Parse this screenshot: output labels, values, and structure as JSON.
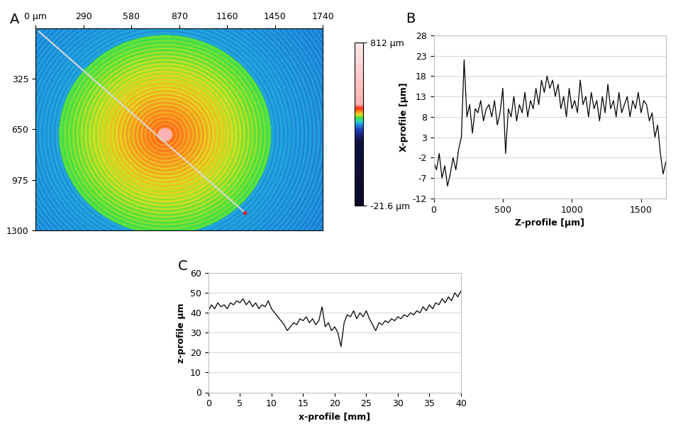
{
  "chart_data": [
    {
      "type": "image",
      "title": "A",
      "xlim": [
        0,
        1740
      ],
      "ylim": [
        1300,
        0
      ],
      "xticks": [
        {
          "value": 0,
          "label": "0 µm"
        },
        290,
        580,
        870,
        1160,
        1450,
        1740
      ],
      "yticks": [
        325,
        650,
        975,
        1300
      ],
      "profile_x": [
        20,
        1267
      ],
      "profile_y": [
        20,
        1186
      ],
      "colorbar_range": [
        -21.6,
        812
      ],
      "colorbar_ticks": [
        {
          "value": 812,
          "label": "812 µm"
        },
        {
          "value": -21.6,
          "label": "-21.6 µm"
        }
      ]
    },
    {
      "type": "line",
      "title": "B",
      "x_label": "Z-profile [µm]",
      "y_label": "X-profile [µm]",
      "xlim": [
        0,
        1680
      ],
      "ylim": [
        -12,
        28
      ],
      "xticks": [
        0,
        500,
        1000,
        1500
      ],
      "yticks": [
        -12,
        -7,
        -2,
        3,
        8,
        13,
        18,
        23,
        28
      ],
      "grid": "y",
      "color": "#000000",
      "x": [
        0,
        20,
        40,
        60,
        80,
        100,
        120,
        140,
        160,
        180,
        200,
        220,
        240,
        260,
        280,
        300,
        320,
        340,
        360,
        380,
        400,
        420,
        440,
        460,
        480,
        500,
        520,
        540,
        560,
        580,
        600,
        620,
        640,
        660,
        680,
        700,
        720,
        740,
        760,
        780,
        800,
        820,
        840,
        860,
        880,
        900,
        920,
        940,
        960,
        980,
        1000,
        1020,
        1040,
        1060,
        1080,
        1100,
        1120,
        1140,
        1160,
        1180,
        1200,
        1220,
        1240,
        1260,
        1280,
        1300,
        1320,
        1340,
        1360,
        1380,
        1400,
        1420,
        1440,
        1460,
        1480,
        1500,
        1520,
        1540,
        1560,
        1580,
        1600,
        1620,
        1640,
        1660,
        1680
      ],
      "values": [
        -3,
        -5,
        -1,
        -7,
        -4,
        -9,
        -6,
        -2,
        -5,
        0,
        3,
        22,
        8,
        11,
        4,
        10,
        9,
        12,
        7,
        10,
        11,
        8,
        12,
        6,
        9,
        15,
        -1,
        10,
        8,
        13,
        7,
        11,
        9,
        14,
        8,
        12,
        10,
        15,
        11,
        17,
        14,
        18,
        15,
        17,
        13,
        16,
        10,
        13,
        8,
        15,
        10,
        12,
        9,
        17,
        11,
        13,
        8,
        14,
        10,
        12,
        7,
        13,
        9,
        16,
        10,
        12,
        8,
        14,
        9,
        11,
        13,
        8,
        12,
        10,
        14,
        9,
        12,
        11,
        7,
        9,
        3,
        6,
        -1,
        -6,
        -3
      ]
    },
    {
      "type": "line",
      "title": "C",
      "x_label": "x-profile [mm]",
      "y_label": "z-profile µm",
      "xlim": [
        0,
        40
      ],
      "ylim": [
        0,
        60
      ],
      "xticks": [
        0,
        5,
        10,
        15,
        20,
        25,
        30,
        35,
        40
      ],
      "yticks": [
        0,
        10,
        20,
        30,
        40,
        50,
        60
      ],
      "grid": "y",
      "color": "#000000",
      "x": [
        0,
        0.5,
        1,
        1.5,
        2,
        2.5,
        3,
        3.5,
        4,
        4.5,
        5,
        5.5,
        6,
        6.5,
        7,
        7.5,
        8,
        8.5,
        9,
        9.5,
        10,
        10.5,
        11,
        11.5,
        12,
        12.5,
        13,
        13.5,
        14,
        14.5,
        15,
        15.5,
        16,
        16.5,
        17,
        17.5,
        18,
        18.5,
        19,
        19.5,
        20,
        20.5,
        21,
        21.5,
        22,
        22.5,
        23,
        23.5,
        24,
        24.5,
        25,
        25.5,
        26,
        26.5,
        27,
        27.5,
        28,
        28.5,
        29,
        29.5,
        30,
        30.5,
        31,
        31.5,
        32,
        32.5,
        33,
        33.5,
        34,
        34.5,
        35,
        35.5,
        36,
        36.5,
        37,
        37.5,
        38,
        38.5,
        39,
        39.5,
        40
      ],
      "values": [
        41,
        44,
        42,
        45,
        43,
        44,
        42,
        45,
        44,
        46,
        45,
        47,
        44,
        46,
        43,
        45,
        42,
        44,
        43,
        46,
        42,
        40,
        38,
        36,
        34,
        31,
        33,
        35,
        34,
        37,
        36,
        38,
        35,
        37,
        34,
        36,
        43,
        33,
        35,
        31,
        33,
        30,
        23,
        35,
        39,
        38,
        41,
        37,
        40,
        38,
        41,
        37,
        34,
        31,
        35,
        34,
        36,
        35,
        37,
        36,
        38,
        37,
        39,
        38,
        40,
        39,
        41,
        40,
        43,
        41,
        44,
        42,
        45,
        44,
        47,
        45,
        48,
        46,
        50,
        48,
        51
      ]
    }
  ]
}
